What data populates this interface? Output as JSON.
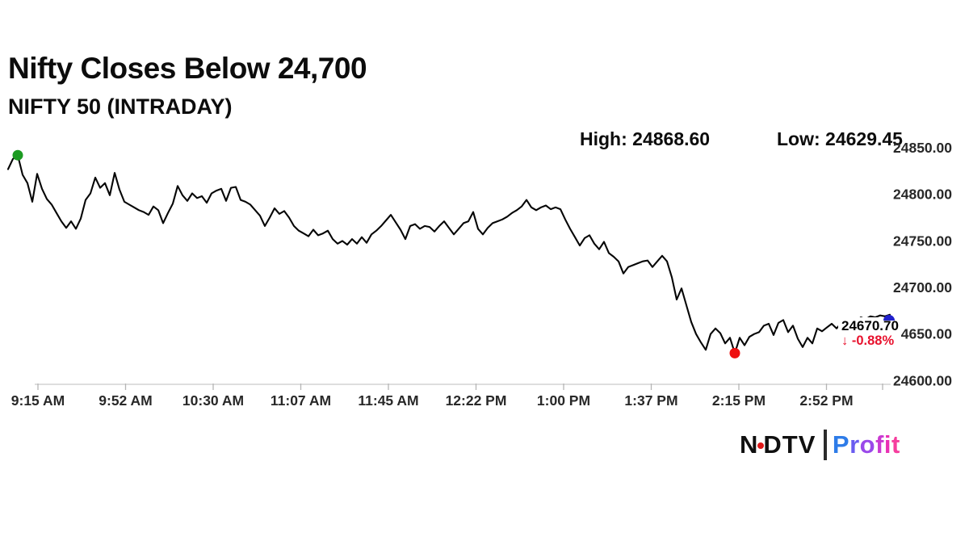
{
  "header": {
    "title": "Nifty Closes Below 24,700",
    "subtitle": "NIFTY 50 (INTRADAY)"
  },
  "stats": {
    "high_text": "High: 24868.60",
    "low_text": "Low: 24629.45"
  },
  "brand": {
    "ndtv_left": "N",
    "ndtv_right": "DTV",
    "dot_color": "#e01818",
    "profit": "Profit",
    "profit_colors": [
      "#2e7ce8",
      "#6a5cf0",
      "#9a49ea",
      "#c93ad2",
      "#e930b4",
      "#f63e9e"
    ]
  },
  "chart_data": {
    "type": "line",
    "title": "Nifty Closes Below 24,700",
    "subtitle": "NIFTY 50 (INTRADAY)",
    "high": 24868.6,
    "low": 24629.45,
    "ylim": [
      24600,
      24855
    ],
    "grid": false,
    "y_ticks": [
      "24850.00",
      "24800.00",
      "24750.00",
      "24700.00",
      "24650.00",
      "24600.00"
    ],
    "x_ticks": [
      "9:15 AM",
      "9:52 AM",
      "10:30 AM",
      "11:07 AM",
      "11:45 AM",
      "12:22 PM",
      "1:00 PM",
      "1:37 PM",
      "2:15 PM",
      "2:52 PM"
    ],
    "line_color": "#060606",
    "series": {
      "name": "NIFTY 50",
      "prices": [
        24827,
        24838,
        24842,
        24821,
        24812,
        24792,
        24822,
        24806,
        24795,
        24789,
        24780,
        24771,
        24764,
        24771,
        24763,
        24774,
        24794,
        24801,
        24818,
        24807,
        24812,
        24799,
        24823,
        24805,
        24792,
        24789,
        24786,
        24783,
        24781,
        24778,
        24787,
        24783,
        24769,
        24780,
        24790,
        24809,
        24799,
        24793,
        24801,
        24796,
        24798,
        24791,
        24801,
        24804,
        24806,
        24793,
        24807,
        24808,
        24794,
        24792,
        24789,
        24783,
        24777,
        24766,
        24775,
        24785,
        24779,
        24782,
        24775,
        24766,
        24761,
        24758,
        24755,
        24762,
        24756,
        24758,
        24761,
        24752,
        24747,
        24750,
        24746,
        24752,
        24747,
        24754,
        24748,
        24757,
        24761,
        24766,
        24772,
        24778,
        24770,
        24762,
        24752,
        24766,
        24768,
        24763,
        24766,
        24765,
        24760,
        24766,
        24771,
        24764,
        24757,
        24763,
        24769,
        24771,
        24781,
        24763,
        24757,
        24764,
        24769,
        24771,
        24773,
        24776,
        24780,
        24783,
        24787,
        24794,
        24786,
        24783,
        24786,
        24788,
        24784,
        24786,
        24784,
        24773,
        24763,
        24754,
        24745,
        24753,
        24756,
        24747,
        24741,
        24749,
        24737,
        24733,
        24728,
        24715,
        24722,
        24724,
        24726,
        24728,
        24729,
        24722,
        24728,
        24734,
        24728,
        24711,
        24687,
        24699,
        24681,
        24663,
        24650,
        24641,
        24633,
        24650,
        24656,
        24651,
        24640,
        24646,
        24629.45,
        24646,
        24638,
        24647,
        24650,
        24652,
        24659,
        24661,
        24649,
        24662,
        24665,
        24652,
        24659,
        24645,
        24636,
        24646,
        24640,
        24656,
        24653,
        24657,
        24661,
        24656,
        24662,
        24660,
        24665,
        24663,
        24668,
        24666,
        24669,
        24668,
        24670,
        24669,
        24670.7
      ]
    },
    "markers": {
      "open": {
        "index": 2,
        "color": "#1c9b22"
      },
      "low": {
        "index": 150,
        "color": "#ee1111"
      },
      "last": {
        "color": "#2121cc"
      }
    },
    "last": {
      "price": 24670.7,
      "price_text": "24670.70",
      "change_pct": -0.88,
      "change_text": "↓ -0.88%",
      "change_color": "#e8112d"
    }
  }
}
